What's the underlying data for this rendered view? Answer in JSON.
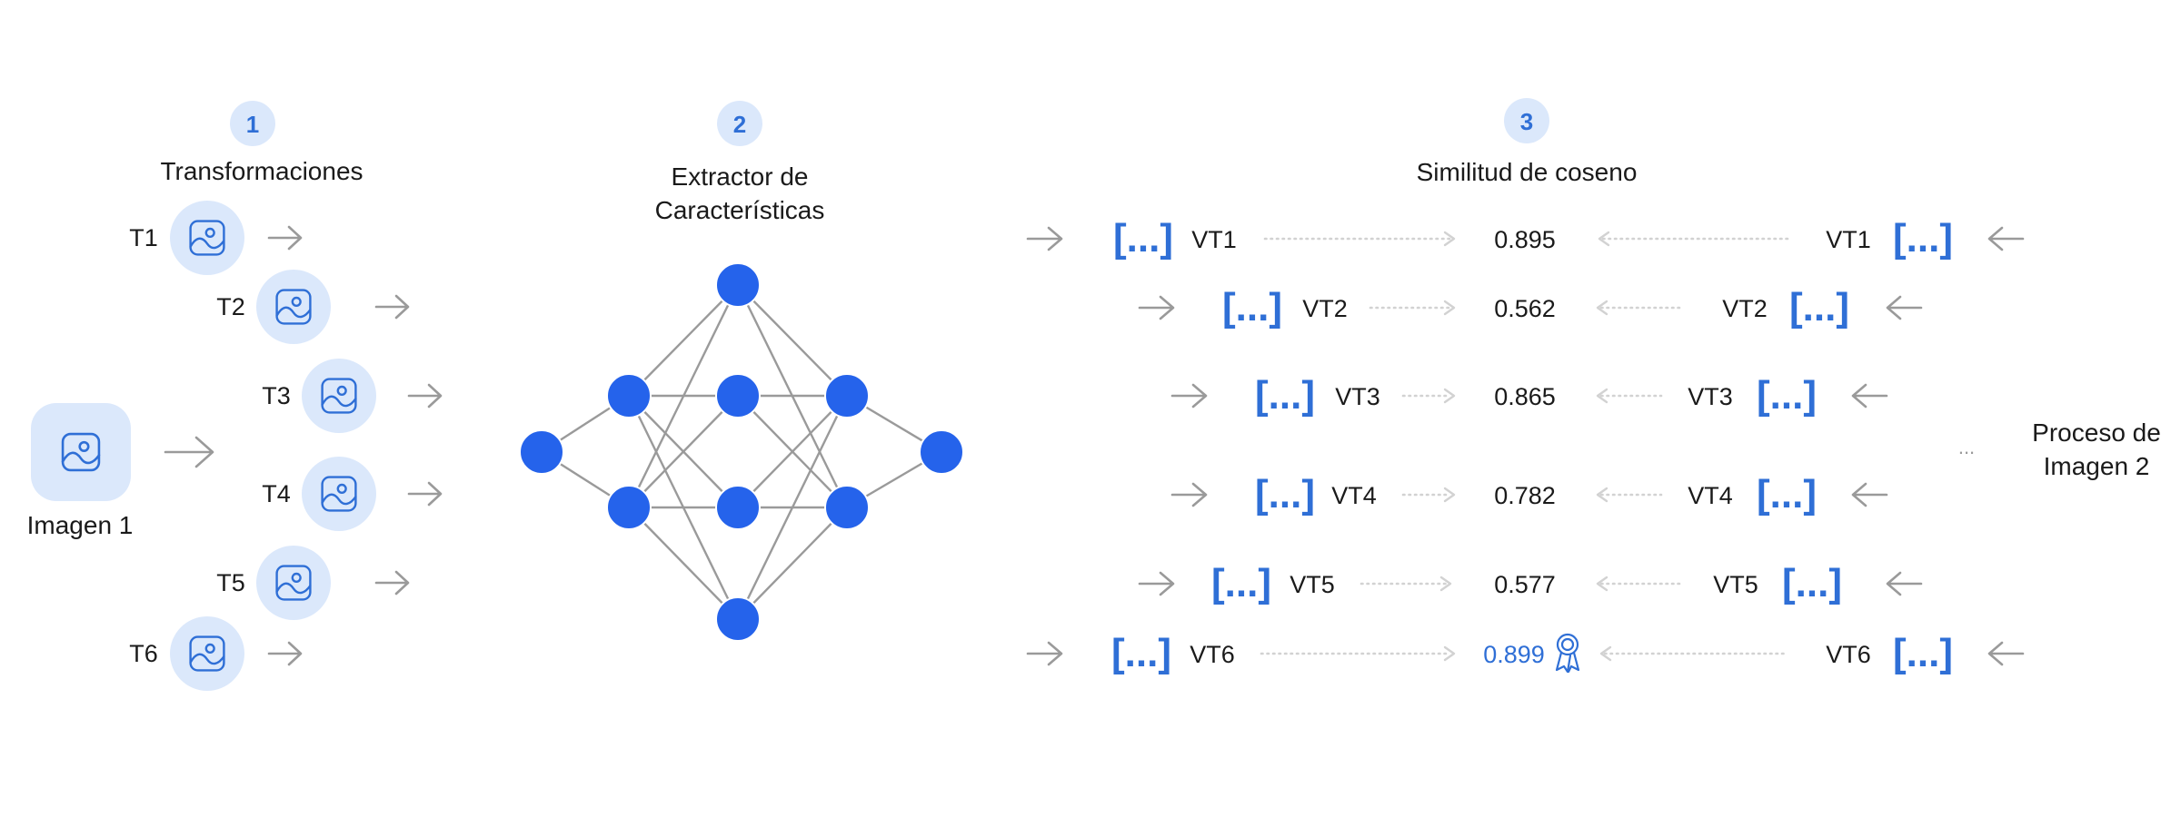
{
  "steps": [
    {
      "number": "1",
      "title": "Transformaciones"
    },
    {
      "number": "2",
      "title_line1": "Extractor de",
      "title_line2": "Características"
    },
    {
      "number": "3",
      "title": "Similitud de coseno"
    }
  ],
  "source_image": {
    "label": "Imagen 1",
    "icon": "image-icon"
  },
  "transforms": [
    "T1",
    "T2",
    "T3",
    "T4",
    "T5",
    "T6"
  ],
  "vectors": {
    "bracket_text": "[...]",
    "left_labels": [
      "VT1",
      "VT2",
      "VT3",
      "VT4",
      "VT5",
      "VT6"
    ],
    "right_labels": [
      "VT1",
      "VT2",
      "VT3",
      "VT4",
      "VT5",
      "VT6"
    ]
  },
  "similarities": [
    "0.895",
    "0.562",
    "0.865",
    "0.782",
    "0.577",
    "0.899"
  ],
  "best_match_index": 5,
  "best_icon": "award-ribbon-icon",
  "second_image": {
    "ellipsis": "...",
    "label_line1": "Proceso de",
    "label_line2": "Imagen 2"
  },
  "colors": {
    "accent": "#2f6fd6",
    "node": "#2563eb",
    "circle": "#dbe8fb",
    "arrow": "#9a9a9a",
    "dotted": "#d2d2d2"
  }
}
